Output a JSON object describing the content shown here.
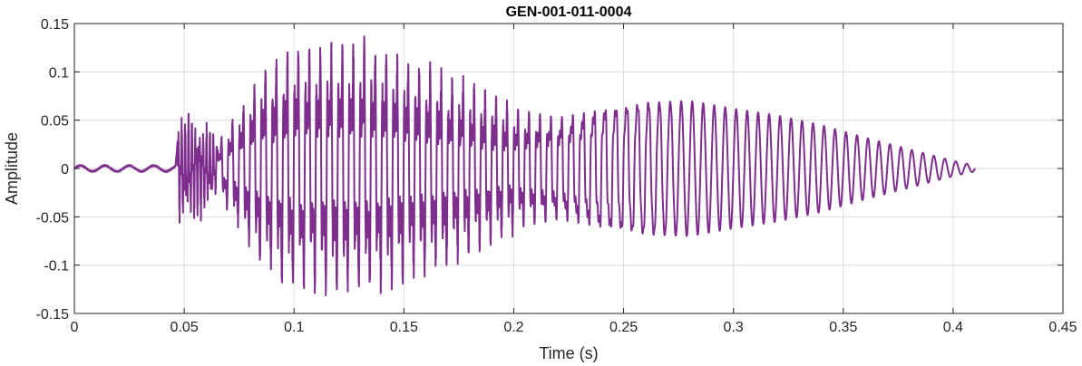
{
  "chart_data": {
    "type": "line",
    "title": "GEN-001-011-0004",
    "xlabel": "Time (s)",
    "ylabel": "Amplitude",
    "xlim": [
      0,
      0.45
    ],
    "ylim": [
      -0.15,
      0.15
    ],
    "grid": true,
    "xticks": [
      0,
      0.05,
      0.1,
      0.15,
      0.2,
      0.25,
      0.3,
      0.35,
      0.4,
      0.45
    ],
    "xtick_labels": [
      "0",
      "0.05",
      "0.1",
      "0.15",
      "0.2",
      "0.25",
      "0.3",
      "0.35",
      "0.4",
      "0.45"
    ],
    "yticks": [
      0.15,
      0.1,
      0.05,
      0,
      -0.05,
      -0.1,
      -0.15
    ],
    "ytick_labels": [
      "0.15",
      "0.1",
      "0.05",
      "0",
      "-0.05",
      "-0.1",
      "-0.15"
    ],
    "series": [
      {
        "color": "#7e2f8e",
        "signal_end": 0.41,
        "onset": 0.047,
        "fundamental_hz": 200,
        "envelope": [
          {
            "t": 0.0,
            "a": 0.003
          },
          {
            "t": 0.046,
            "a": 0.003
          },
          {
            "t": 0.048,
            "a": 0.055
          },
          {
            "t": 0.06,
            "a": 0.04
          },
          {
            "t": 0.065,
            "a": 0.025
          },
          {
            "t": 0.075,
            "a": 0.06
          },
          {
            "t": 0.085,
            "a": 0.1
          },
          {
            "t": 0.1,
            "a": 0.12
          },
          {
            "t": 0.12,
            "a": 0.125
          },
          {
            "t": 0.135,
            "a": 0.125
          },
          {
            "t": 0.15,
            "a": 0.11
          },
          {
            "t": 0.165,
            "a": 0.1
          },
          {
            "t": 0.18,
            "a": 0.085
          },
          {
            "t": 0.2,
            "a": 0.065
          },
          {
            "t": 0.22,
            "a": 0.06
          },
          {
            "t": 0.24,
            "a": 0.075
          },
          {
            "t": 0.26,
            "a": 0.078
          },
          {
            "t": 0.28,
            "a": 0.07
          },
          {
            "t": 0.3,
            "a": 0.062
          },
          {
            "t": 0.32,
            "a": 0.055
          },
          {
            "t": 0.34,
            "a": 0.045
          },
          {
            "t": 0.36,
            "a": 0.032
          },
          {
            "t": 0.38,
            "a": 0.02
          },
          {
            "t": 0.4,
            "a": 0.008
          },
          {
            "t": 0.41,
            "a": 0.003
          }
        ]
      }
    ]
  }
}
